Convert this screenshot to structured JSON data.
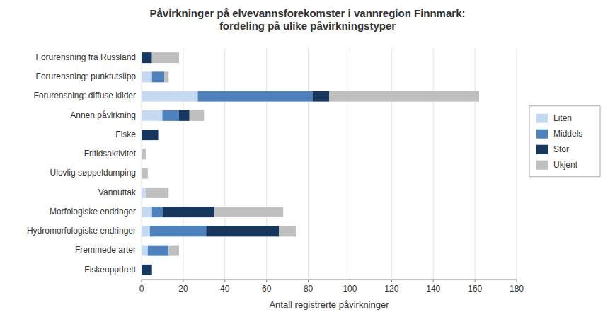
{
  "chart_data": {
    "type": "bar",
    "orientation": "horizontal",
    "stacked": true,
    "title": "Påvirkninger på elvevannsforekomster i vannregion Finnmark:\nfordeling på ulike påvirkningstyper",
    "x_label": "Antall registrerte påvirkninger",
    "categories": [
      "Fiskeoppdrett",
      "Fremmede arter",
      "Hydromorfologiske endringer",
      "Morfologiske endringer",
      "Vannuttak",
      "Ulovlig søppeldumping",
      "Fritidsaktivitet",
      "Fiske",
      "Annen påvirkning",
      "Forurensning: diffuse kilder",
      "Forurensning: punktutslipp",
      "Forurensning fra Russland"
    ],
    "series": [
      {
        "name": "Liten",
        "color": "#c5d9f1",
        "values": [
          0,
          3,
          4,
          5,
          2,
          0,
          0,
          0,
          10,
          27,
          5,
          0
        ]
      },
      {
        "name": "Middels",
        "color": "#4f81bd",
        "values": [
          0,
          10,
          27,
          5,
          0,
          0,
          0,
          0,
          8,
          55,
          6,
          0
        ]
      },
      {
        "name": "Stor",
        "color": "#17375e",
        "values": [
          5,
          0,
          35,
          25,
          0,
          0,
          0,
          8,
          5,
          8,
          0,
          5
        ]
      },
      {
        "name": "Ukjent",
        "color": "#bfbfbf",
        "values": [
          0,
          5,
          8,
          33,
          11,
          3,
          2,
          0,
          7,
          72,
          2,
          13
        ]
      }
    ],
    "xlim": [
      0,
      180
    ],
    "xticks": [
      0,
      20,
      40,
      60,
      80,
      100,
      120,
      140,
      160,
      180
    ],
    "grid": true,
    "legend": "right"
  }
}
